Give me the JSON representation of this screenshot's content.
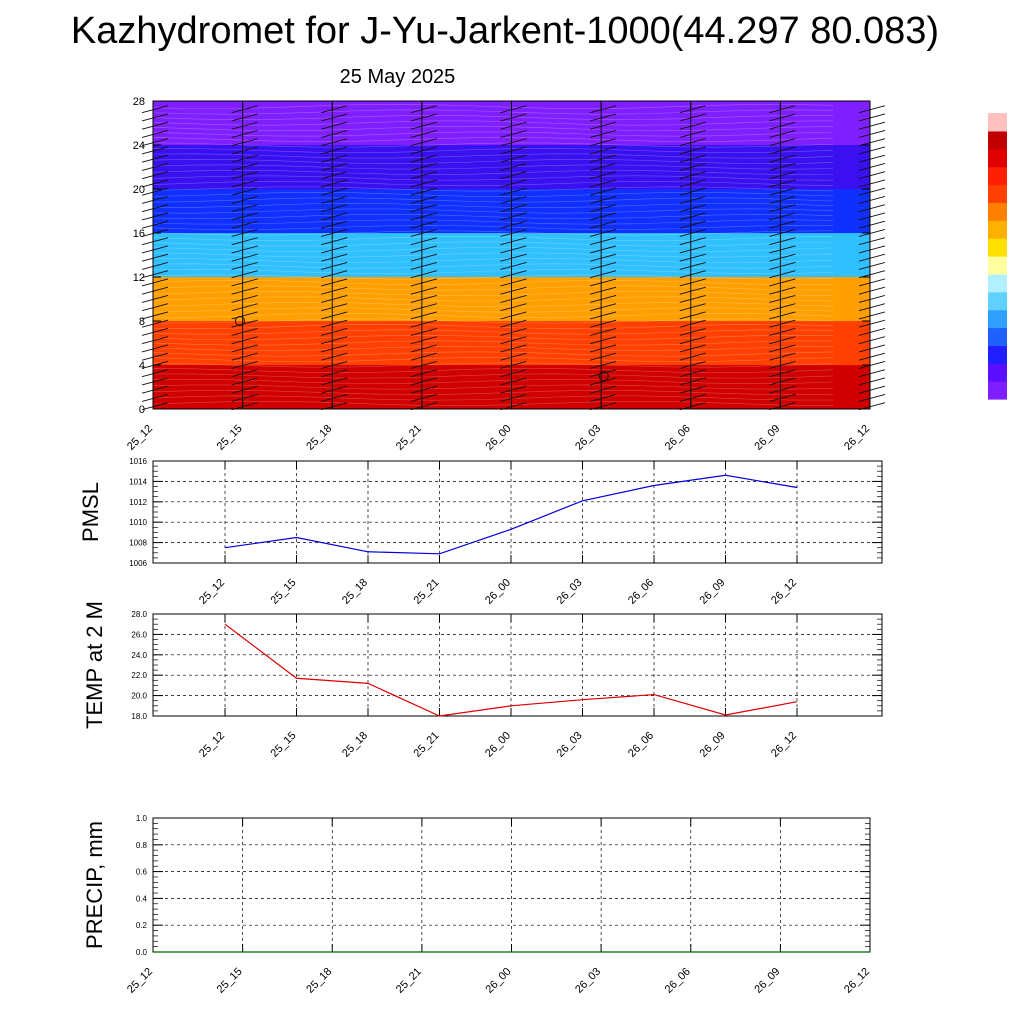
{
  "header": {
    "title": "Kazhydromet for J-Yu-Jarkent-1000(44.297 80.083)",
    "date": "25 May 2025"
  },
  "colors": {
    "pmsl_line": "#0000dd",
    "temp_line": "#dd0000",
    "precip_line": "#006400",
    "contour_top": "#7f1fff",
    "contour_bottom": "#cc0000"
  },
  "chart_data": [
    {
      "type": "heatmap",
      "name": "vertical-cross-section",
      "title": "",
      "x_tick_labels": [
        "25_12",
        "25_15",
        "25_18",
        "25_21",
        "26_00",
        "26_03",
        "26_06",
        "26_09",
        "26_12"
      ],
      "y_tick_labels": [
        "0",
        "4",
        "8",
        "12",
        "16",
        "20",
        "24",
        "28"
      ],
      "ylim": [
        0,
        28
      ],
      "color_bands": [
        {
          "from": 0,
          "to": 4,
          "color": "#d00000"
        },
        {
          "from": 4,
          "to": 8,
          "color": "#ff4000"
        },
        {
          "from": 8,
          "to": 12,
          "color": "#ffa000"
        },
        {
          "from": 12,
          "to": 16,
          "color": "#30c0ff"
        },
        {
          "from": 16,
          "to": 20,
          "color": "#1030ff"
        },
        {
          "from": 20,
          "to": 24,
          "color": "#3a10f0"
        },
        {
          "from": 24,
          "to": 28,
          "color": "#7f1fff"
        }
      ],
      "colorbar": [
        "#7f1fff",
        "#5a10ff",
        "#2020ff",
        "#2060ff",
        "#30a0ff",
        "#60d0ff",
        "#b0f0ff",
        "#ffffa0",
        "#ffe000",
        "#ffb000",
        "#ff8000",
        "#ff4000",
        "#ff2000",
        "#e00000",
        "#c00000",
        "#ffc0c0"
      ]
    },
    {
      "type": "line",
      "name": "pmsl",
      "ylabel": "PMSL",
      "x": [
        "25_12",
        "25_15",
        "25_18",
        "25_21",
        "26_00",
        "26_03",
        "26_06",
        "26_09",
        "26_12"
      ],
      "values": [
        1007.5,
        1008.5,
        1007.1,
        1006.9,
        1009.3,
        1012.1,
        1013.6,
        1014.6,
        1013.4
      ],
      "ylim": [
        1006,
        1016
      ],
      "y_tick_labels": [
        "1006",
        "1008",
        "1010",
        "1012",
        "1014",
        "1016"
      ],
      "grid": true
    },
    {
      "type": "line",
      "name": "temp-2m",
      "ylabel": "TEMP at 2 M",
      "x": [
        "25_12",
        "25_15",
        "25_18",
        "25_21",
        "26_00",
        "26_03",
        "26_06",
        "26_09",
        "26_12"
      ],
      "values": [
        27.0,
        21.7,
        21.2,
        18.0,
        19.0,
        19.6,
        20.1,
        18.1,
        19.4
      ],
      "ylim": [
        18,
        28
      ],
      "y_tick_labels": [
        "18.0",
        "20.0",
        "22.0",
        "24.0",
        "26.0",
        "28.0"
      ],
      "grid": true
    },
    {
      "type": "line",
      "name": "precip",
      "ylabel": "PRECIP, mm",
      "x_tick_labels": [
        "25_12",
        "25_15",
        "25_18",
        "25_21",
        "26_00",
        "26_03",
        "26_06",
        "26_09",
        "26_12"
      ],
      "values": [
        0,
        0,
        0,
        0,
        0,
        0,
        0,
        0,
        0
      ],
      "ylim": [
        0,
        1
      ],
      "y_tick_labels": [
        "0.0",
        "0.2",
        "0.4",
        "0.6",
        "0.8",
        "1.0"
      ],
      "grid": true
    }
  ]
}
